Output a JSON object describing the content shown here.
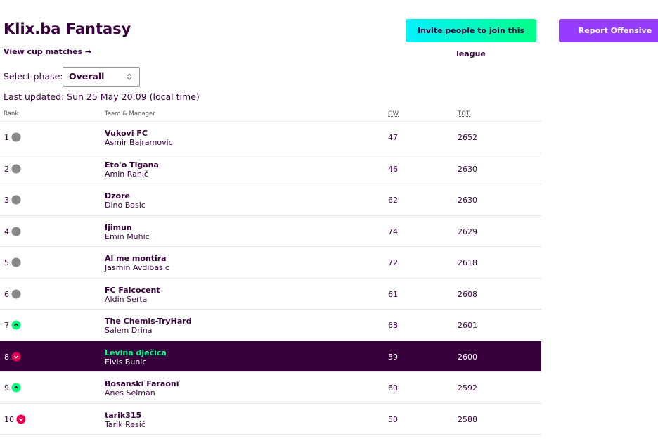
{
  "header": {
    "title": "Klix.ba Fantasy",
    "invite_button": "Invite people to join this league",
    "report_button": "Report Offensive",
    "cup_link": "View cup matches →"
  },
  "phase": {
    "label": "Select phase:",
    "selected": "Overall"
  },
  "last_updated": "Last updated: Sun 25 May 20:09 (local time)",
  "table": {
    "columns": [
      "Rank",
      "Team & Manager",
      "GW",
      "TOT"
    ],
    "rows": [
      {
        "rank": 1,
        "team": "Vukovi FC",
        "manager": "Asmir Bajramovic",
        "gw": 47,
        "tot": 2652,
        "icon_color": "#888888"
      },
      {
        "rank": 2,
        "team": "Eto'o Tigana",
        "manager": "Amin Rahić",
        "gw": 46,
        "tot": 2630,
        "icon_color": "#888888"
      },
      {
        "rank": 3,
        "team": "Dzore",
        "manager": "Dino Basic",
        "gw": 62,
        "tot": 2630,
        "icon_color": "#888888"
      },
      {
        "rank": 4,
        "team": "Ijimun",
        "manager": "Emin Muhic",
        "gw": 74,
        "tot": 2629,
        "icon_color": "#888888"
      },
      {
        "rank": 5,
        "team": "Al me montira",
        "manager": "Jasmin Avdibasic",
        "gw": 72,
        "tot": 2618,
        "icon_color": "#888888"
      },
      {
        "rank": 6,
        "team": "FC Falcocent",
        "manager": "Aldin Šerta",
        "gw": 61,
        "tot": 2608,
        "icon_color": "#888888"
      },
      {
        "rank": 7,
        "team": "The Chemis-TryHard",
        "manager": "Salem Drina",
        "gw": 68,
        "tot": 2601,
        "icon_color": "#01fc7a"
      },
      {
        "rank": 8,
        "team": "Levina dječica",
        "manager": "Elvis Bunic",
        "gw": 59,
        "tot": 2600,
        "icon_color": "#e90052",
        "highlighted": true
      },
      {
        "rank": 9,
        "team": "Bosanski Faraoni",
        "manager": "Anes Selman",
        "gw": 60,
        "tot": 2592,
        "icon_color": "#01fc7a"
      },
      {
        "rank": 10,
        "team": "tarik315",
        "manager": "Tarik Resić",
        "gw": 50,
        "tot": 2588,
        "icon_color": "#e90052"
      }
    ]
  }
}
